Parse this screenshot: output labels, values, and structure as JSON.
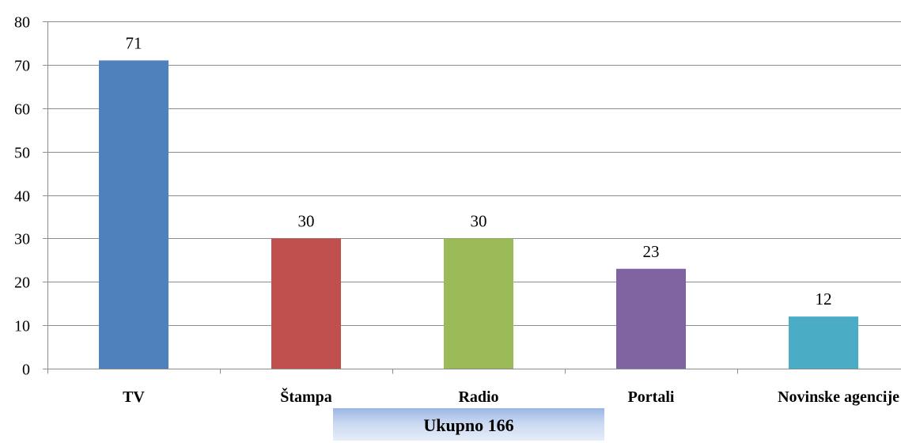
{
  "chart_data": {
    "type": "bar",
    "categories": [
      "TV",
      "Štampa",
      "Radio",
      "Portali",
      "Novinske agencije"
    ],
    "values": [
      71,
      30,
      30,
      23,
      12
    ],
    "data_labels": [
      "71",
      "30",
      "30",
      "23",
      "12"
    ],
    "colors": [
      "#4f81bd",
      "#c0504d",
      "#9bbb59",
      "#8064a2",
      "#4bacc6"
    ],
    "ylim": [
      0,
      80
    ],
    "yticks": [
      0,
      10,
      20,
      30,
      40,
      50,
      60,
      70,
      80
    ],
    "grid": true,
    "legend": "none",
    "title": "",
    "xlabel": "",
    "ylabel": ""
  },
  "total_label": "Ukupno 166"
}
